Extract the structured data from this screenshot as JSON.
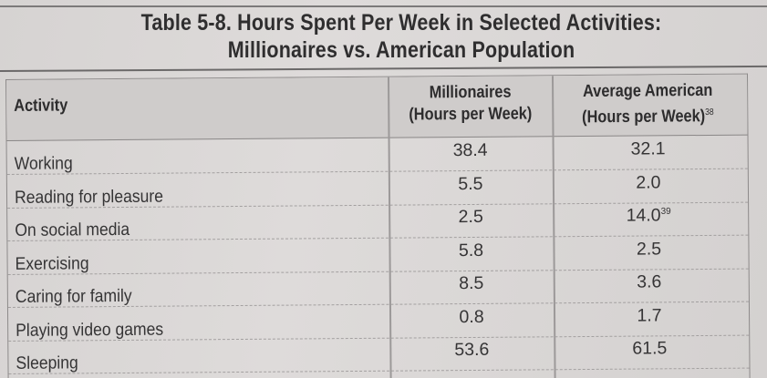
{
  "caption": {
    "line1": "Table 5-8. Hours Spent Per Week in Selected Activities:",
    "line2": "Millionaires vs. American Population"
  },
  "table": {
    "headers": {
      "activity": "Activity",
      "millionaires_line1": "Millionaires",
      "millionaires_line2": "(Hours per Week)",
      "average_line1": "Average American",
      "average_line2": "(Hours per Week)",
      "average_footnote": "38"
    },
    "rows": [
      {
        "activity": "Working",
        "millionaires": "38.4",
        "average": "32.1",
        "average_footnote": ""
      },
      {
        "activity": "Reading for pleasure",
        "millionaires": "5.5",
        "average": "2.0",
        "average_footnote": ""
      },
      {
        "activity": "On social media",
        "millionaires": "2.5",
        "average": "14.0",
        "average_footnote": "39"
      },
      {
        "activity": "Exercising",
        "millionaires": "5.8",
        "average": "2.5",
        "average_footnote": ""
      },
      {
        "activity": "Caring for family",
        "millionaires": "8.5",
        "average": "3.6",
        "average_footnote": ""
      },
      {
        "activity": "Playing video games",
        "millionaires": "0.8",
        "average": "1.7",
        "average_footnote": ""
      },
      {
        "activity": "Sleeping",
        "millionaires": "53.6",
        "average": "61.5",
        "average_footnote": ""
      }
    ]
  }
}
